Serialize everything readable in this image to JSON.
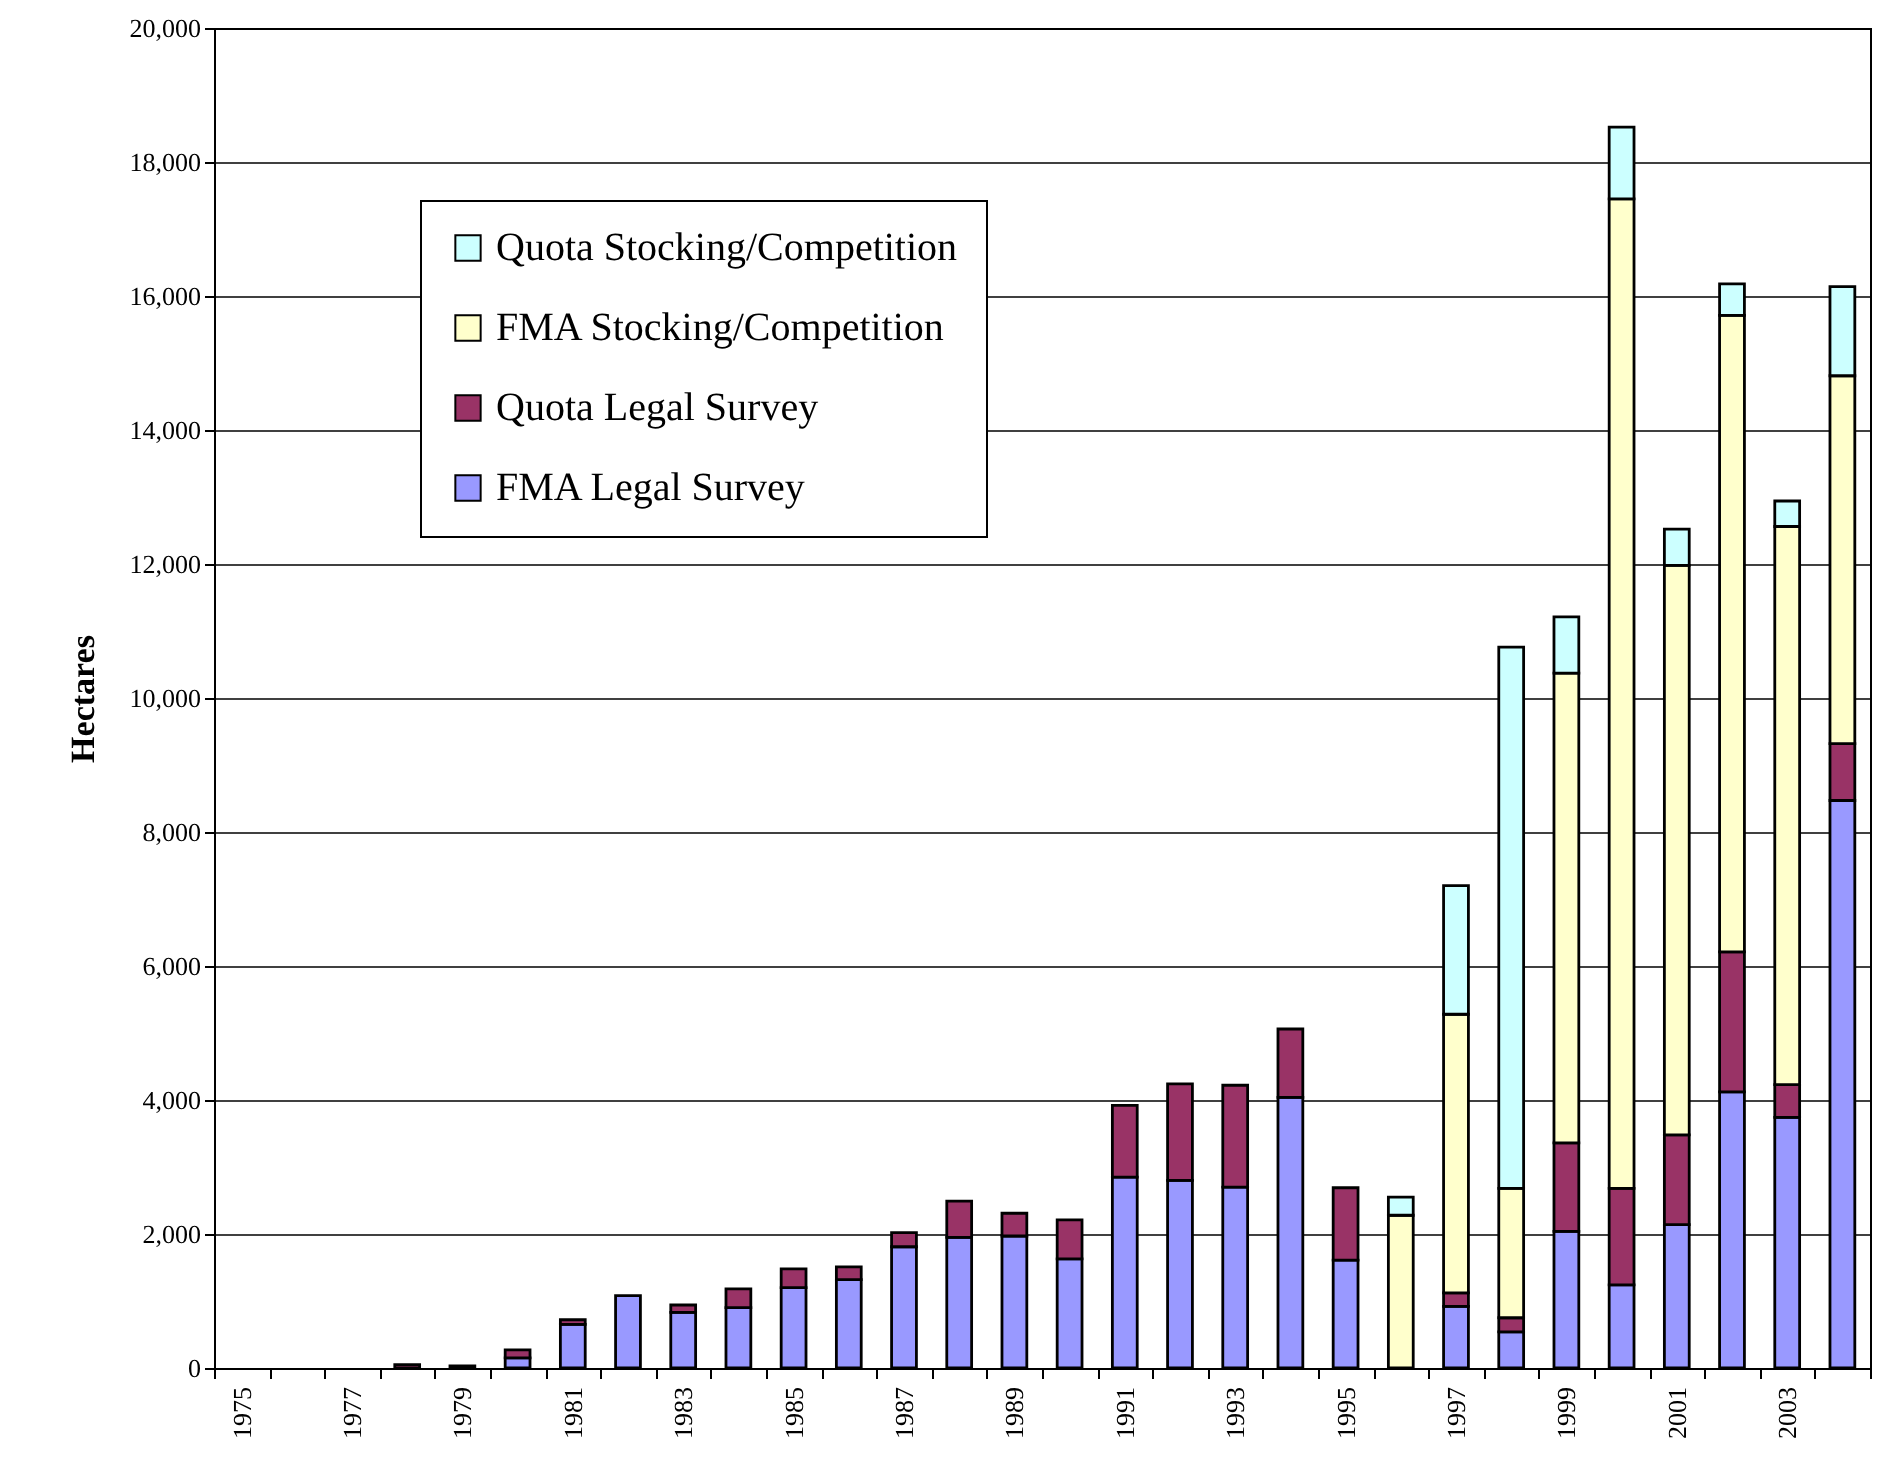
{
  "chart_data": {
    "type": "bar",
    "stacked": true,
    "ylabel": "Hectares",
    "categories": [
      "1975",
      null,
      "1977",
      null,
      "1979",
      null,
      "1981",
      null,
      "1983",
      null,
      "1985",
      null,
      "1987",
      null,
      "1989",
      null,
      "1991",
      null,
      "1993",
      null,
      "1995",
      null,
      "1997",
      null,
      "1999",
      null,
      "2001",
      null,
      "2003",
      null
    ],
    "series": [
      {
        "name": "FMA Legal Survey",
        "color": "#9999ff",
        "values": [
          0,
          0,
          0,
          0,
          0,
          150,
          650,
          1080,
          830,
          900,
          1200,
          1320,
          1810,
          1950,
          1970,
          1630,
          2850,
          2800,
          2700,
          4040,
          1610,
          0,
          920,
          540,
          2040,
          1240,
          2140,
          4120,
          3740,
          8470
        ]
      },
      {
        "name": "Quota Legal Survey",
        "color": "#993366",
        "values": [
          0,
          0,
          0,
          50,
          30,
          120,
          70,
          0,
          110,
          280,
          280,
          190,
          210,
          540,
          340,
          580,
          1070,
          1440,
          1520,
          1020,
          1080,
          0,
          200,
          210,
          1320,
          1440,
          1340,
          2090,
          490,
          850
        ]
      },
      {
        "name": "FMA Stocking/Competition",
        "color": "#ffffcc",
        "values": [
          0,
          0,
          0,
          0,
          0,
          0,
          0,
          0,
          0,
          0,
          0,
          0,
          0,
          0,
          0,
          0,
          0,
          0,
          0,
          0,
          0,
          2280,
          4160,
          1930,
          7010,
          14770,
          8500,
          9500,
          8330,
          5490
        ]
      },
      {
        "name": "Quota Stocking/Competition",
        "color": "#ccffff",
        "values": [
          0,
          0,
          0,
          0,
          0,
          0,
          0,
          0,
          0,
          0,
          0,
          0,
          0,
          0,
          0,
          0,
          0,
          0,
          0,
          0,
          0,
          270,
          1920,
          8080,
          840,
          1070,
          540,
          470,
          380,
          1330
        ]
      }
    ],
    "ylim": [
      0,
      20000
    ],
    "yticks": [
      0,
      {
        "value": 2000,
        "label": "2,000"
      },
      {
        "value": 4000,
        "label": "4,000"
      },
      {
        "value": 6000,
        "label": "6,000"
      },
      {
        "value": 8000,
        "label": "8,000"
      },
      {
        "value": 10000,
        "label": "10,000"
      },
      {
        "value": 12000,
        "label": "12,000"
      },
      {
        "value": 14000,
        "label": "14,000"
      },
      {
        "value": 16000,
        "label": "16,000"
      },
      {
        "value": 18000,
        "label": "18,000"
      },
      {
        "value": 20000,
        "label": "20,000"
      }
    ],
    "grid": "y",
    "legend": "top left"
  }
}
